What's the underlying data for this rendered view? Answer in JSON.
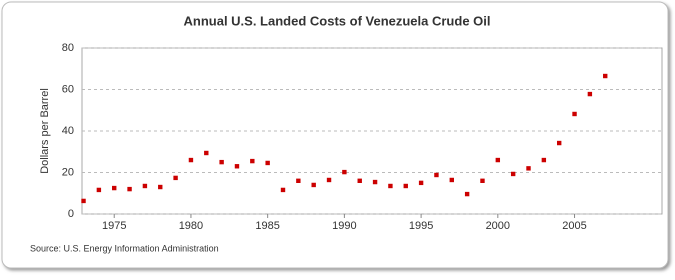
{
  "chart_data": {
    "type": "scatter",
    "title": "Annual U.S. Landed Costs of Venezuela Crude Oil",
    "y_label": "Dollars per Barrel",
    "source": "Source: U.S. Energy Information Administration",
    "x": [
      1973,
      1974,
      1975,
      1976,
      1977,
      1978,
      1979,
      1980,
      1981,
      1982,
      1983,
      1984,
      1985,
      1986,
      1987,
      1988,
      1989,
      1990,
      1991,
      1992,
      1993,
      1994,
      1995,
      1996,
      1997,
      1998,
      1999,
      2000,
      2001,
      2002,
      2003,
      2004,
      2005,
      2006,
      2007
    ],
    "series": [
      {
        "name": "Venezuela",
        "color": "#cc0000",
        "values": [
          6.3,
          11.6,
          12.5,
          12,
          13.5,
          13,
          17.4,
          26,
          29.4,
          25,
          23,
          25.5,
          24.6,
          11.6,
          16,
          14,
          16.4,
          20.2,
          16,
          15.4,
          13.5,
          13.5,
          15,
          18.8,
          16.4,
          9.6,
          16,
          26,
          19.3,
          22,
          26,
          34.2,
          48.2,
          57.8,
          66.5
        ]
      }
    ],
    "xlim": [
      1972.9,
      2010.7
    ],
    "xticks": [
      1975,
      1980,
      1985,
      1990,
      1995,
      2000,
      2005
    ],
    "ylim": [
      0,
      80
    ],
    "yticks": [
      0,
      20,
      40,
      60,
      80
    ],
    "grid": true
  }
}
